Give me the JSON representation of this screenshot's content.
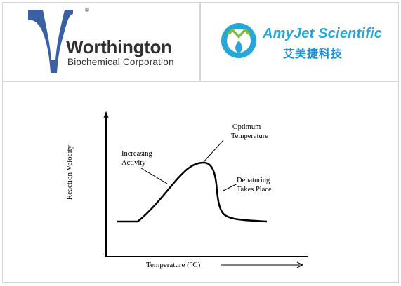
{
  "logos": {
    "worthington": {
      "name": "Worthington",
      "subtitle": "Biochemical Corporation",
      "registered": "®",
      "color": "#3b5fa3"
    },
    "amyjet": {
      "name": "AmyJet Scientific",
      "chinese": "艾美捷科技",
      "colors": [
        "#27a7d9",
        "#7ac143",
        "#1e8fcf"
      ]
    }
  },
  "diagram": {
    "ylabel": "Reaction Velocity",
    "xlabel": "Temperature (°C)",
    "annotations": {
      "increasing_line1": "Increasing",
      "increasing_line2": "Activity",
      "optimum_line1": "Optimum",
      "optimum_line2": "Temperature",
      "denaturing_line1": "Denaturing",
      "denaturing_line2": "Takes Place"
    }
  }
}
